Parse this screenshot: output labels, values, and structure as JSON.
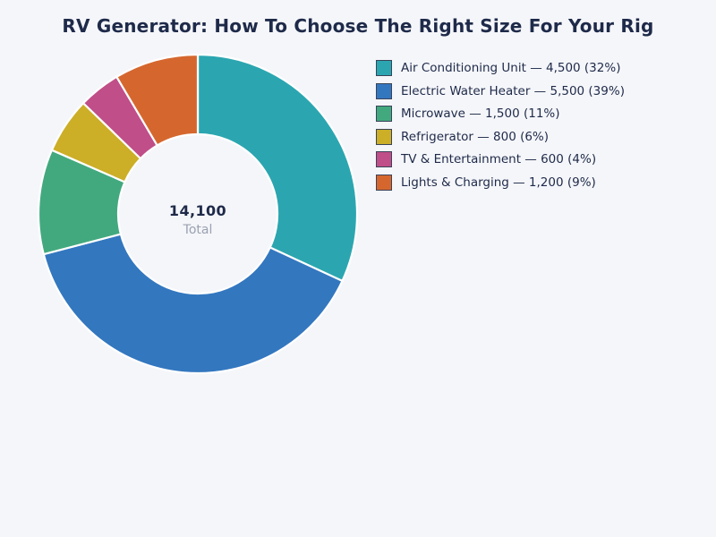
{
  "page": {
    "background_color": "#f5f6fa",
    "text_color": "#1e2a49",
    "muted_text_color": "#9aa2b0",
    "slice_gap_color": "#ffffff"
  },
  "title": "RV Generator: How To Choose The Right Size For Your Rig",
  "center": {
    "total_value": "14,100",
    "total_label": "Total"
  },
  "chart_data": {
    "type": "pie",
    "subtype": "donut",
    "title": "RV Generator: How To Choose The Right Size For Your Rig",
    "total": 14100,
    "start_angle_deg": 0,
    "direction": "clockwise",
    "inner_radius_ratio": 0.5,
    "legend_position": "right",
    "segments": [
      {
        "label": "Air Conditioning Unit",
        "value": 4500,
        "pct": 32,
        "color": "#2ba6b0",
        "legend_label": "Air Conditioning Unit — 4,500 (32%)"
      },
      {
        "label": "Electric Water Heater",
        "value": 5500,
        "pct": 39,
        "color": "#3377bf",
        "legend_label": "Electric Water Heater — 5,500 (39%)"
      },
      {
        "label": "Microwave",
        "value": 1500,
        "pct": 11,
        "color": "#42a97e",
        "legend_label": "Microwave — 1,500 (11%)"
      },
      {
        "label": "Refrigerator",
        "value": 800,
        "pct": 6,
        "color": "#ccae27",
        "legend_label": "Refrigerator — 800 (6%)"
      },
      {
        "label": "TV & Entertainment",
        "value": 600,
        "pct": 4,
        "color": "#c04e88",
        "legend_label": "TV & Entertainment — 600 (4%)"
      },
      {
        "label": "Lights & Charging",
        "value": 1200,
        "pct": 9,
        "color": "#d5672e",
        "legend_label": "Lights & Charging — 1,200 (9%)"
      }
    ]
  }
}
